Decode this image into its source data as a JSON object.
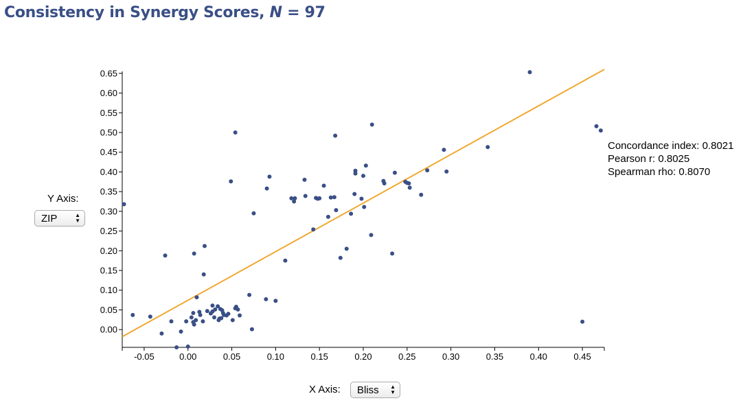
{
  "title": {
    "text": "Consistency in Synergy Scores, ",
    "n_label": "N",
    "n_text": " = 97"
  },
  "stats": {
    "concordance": "Concordance index: 0.8021",
    "pearson": "Pearson r: 0.8025",
    "spearman": "Spearman rho: 0.8070"
  },
  "controls": {
    "y_axis_label": "Y Axis:",
    "y_axis_value": "ZIP",
    "x_axis_label": "X Axis:",
    "x_axis_value": "Bliss"
  },
  "colors": {
    "points": "#3a4f86",
    "fit_line": "#f0a830",
    "title": "#3a4f86"
  },
  "chart_data": {
    "type": "scatter",
    "xlim": [
      -0.075,
      0.475
    ],
    "ylim": [
      -0.045,
      0.655
    ],
    "x_ticks": [
      "-0.05",
      "0.00",
      "0.05",
      "0.10",
      "0.15",
      "0.20",
      "0.25",
      "0.30",
      "0.35",
      "0.40",
      "0.45"
    ],
    "y_ticks": [
      "0.00",
      "0.05",
      "0.10",
      "0.15",
      "0.20",
      "0.25",
      "0.30",
      "0.35",
      "0.40",
      "0.45",
      "0.50",
      "0.55",
      "0.60",
      "0.65"
    ],
    "fit_line": [
      [
        -0.075,
        -0.018
      ],
      [
        0.475,
        0.66
      ]
    ],
    "points": [
      [
        -0.073,
        0.318
      ],
      [
        -0.063,
        0.037
      ],
      [
        -0.043,
        0.033
      ],
      [
        -0.03,
        -0.01
      ],
      [
        -0.026,
        0.188
      ],
      [
        -0.019,
        0.021
      ],
      [
        -0.013,
        -0.045
      ],
      [
        -0.008,
        -0.005
      ],
      [
        -0.002,
        0.021
      ],
      [
        0.0,
        -0.043
      ],
      [
        0.004,
        0.031
      ],
      [
        0.006,
        0.019
      ],
      [
        0.007,
        0.013
      ],
      [
        0.006,
        0.042
      ],
      [
        0.009,
        0.024
      ],
      [
        0.007,
        0.193
      ],
      [
        0.01,
        0.082
      ],
      [
        0.013,
        0.045
      ],
      [
        0.014,
        0.037
      ],
      [
        0.017,
        0.021
      ],
      [
        0.018,
        0.14
      ],
      [
        0.019,
        0.212
      ],
      [
        0.022,
        0.047
      ],
      [
        0.026,
        0.041
      ],
      [
        0.028,
        0.061
      ],
      [
        0.028,
        0.046
      ],
      [
        0.03,
        0.031
      ],
      [
        0.031,
        0.051
      ],
      [
        0.034,
        0.059
      ],
      [
        0.035,
        0.024
      ],
      [
        0.036,
        0.028
      ],
      [
        0.037,
        0.052
      ],
      [
        0.039,
        0.049
      ],
      [
        0.038,
        0.029
      ],
      [
        0.04,
        0.042
      ],
      [
        0.041,
        0.037
      ],
      [
        0.044,
        0.036
      ],
      [
        0.046,
        0.04
      ],
      [
        0.049,
        0.376
      ],
      [
        0.051,
        0.024
      ],
      [
        0.054,
        0.054
      ],
      [
        0.054,
        0.5
      ],
      [
        0.055,
        0.058
      ],
      [
        0.057,
        0.051
      ],
      [
        0.059,
        0.036
      ],
      [
        0.07,
        0.088
      ],
      [
        0.073,
        0.001
      ],
      [
        0.075,
        0.295
      ],
      [
        0.089,
        0.077
      ],
      [
        0.09,
        0.358
      ],
      [
        0.093,
        0.388
      ],
      [
        0.1,
        0.073
      ],
      [
        0.111,
        0.175
      ],
      [
        0.118,
        0.333
      ],
      [
        0.121,
        0.325
      ],
      [
        0.122,
        0.333
      ],
      [
        0.133,
        0.38
      ],
      [
        0.134,
        0.339
      ],
      [
        0.143,
        0.254
      ],
      [
        0.146,
        0.334
      ],
      [
        0.148,
        0.332
      ],
      [
        0.15,
        0.333
      ],
      [
        0.155,
        0.365
      ],
      [
        0.16,
        0.286
      ],
      [
        0.163,
        0.335
      ],
      [
        0.167,
        0.336
      ],
      [
        0.168,
        0.492
      ],
      [
        0.169,
        0.303
      ],
      [
        0.174,
        0.182
      ],
      [
        0.181,
        0.205
      ],
      [
        0.186,
        0.294
      ],
      [
        0.19,
        0.344
      ],
      [
        0.191,
        0.403
      ],
      [
        0.191,
        0.396
      ],
      [
        0.198,
        0.332
      ],
      [
        0.2,
        0.39
      ],
      [
        0.201,
        0.311
      ],
      [
        0.203,
        0.416
      ],
      [
        0.209,
        0.24
      ],
      [
        0.21,
        0.52
      ],
      [
        0.223,
        0.377
      ],
      [
        0.224,
        0.371
      ],
      [
        0.233,
        0.193
      ],
      [
        0.236,
        0.398
      ],
      [
        0.248,
        0.375
      ],
      [
        0.25,
        0.372
      ],
      [
        0.252,
        0.371
      ],
      [
        0.253,
        0.36
      ],
      [
        0.266,
        0.342
      ],
      [
        0.273,
        0.404
      ],
      [
        0.292,
        0.456
      ],
      [
        0.295,
        0.401
      ],
      [
        0.342,
        0.463
      ],
      [
        0.39,
        0.653
      ],
      [
        0.466,
        0.516
      ],
      [
        0.471,
        0.505
      ],
      [
        0.45,
        0.02
      ]
    ]
  }
}
